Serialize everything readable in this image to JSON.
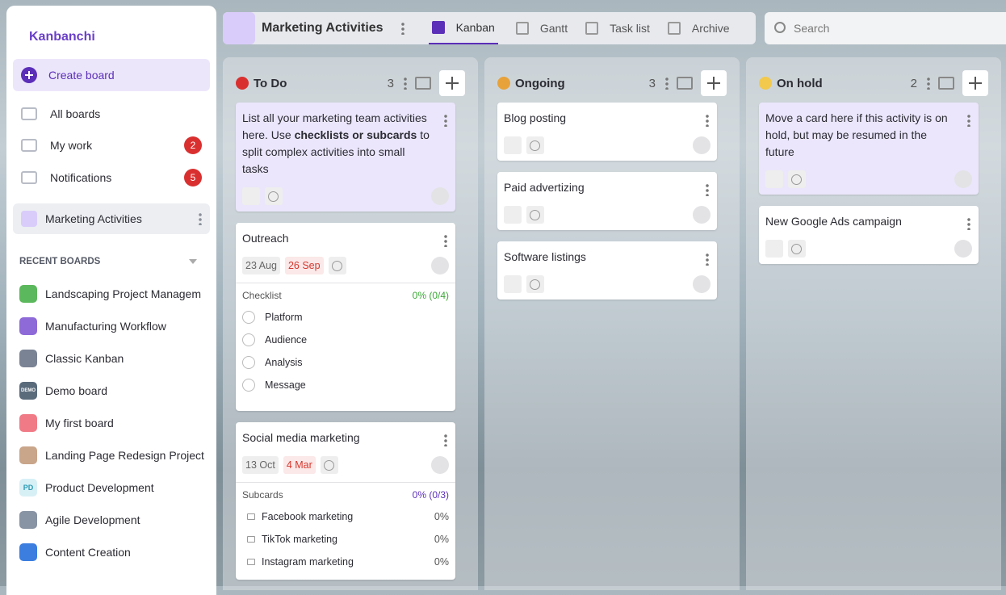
{
  "sidebar": {
    "logo": "Kanbanchi",
    "create": "Create board",
    "nav": [
      {
        "label": "All boards"
      },
      {
        "label": "My work",
        "badge": 2
      },
      {
        "label": "Notifications",
        "badge": 5
      }
    ],
    "current_board": "Marketing Activities",
    "recent_title": "RECENT BOARDS",
    "recent": [
      {
        "label": "Landscaping Project Managem",
        "color": "#5cb85c"
      },
      {
        "label": "Manufacturing Workflow",
        "color": "#8e6ad8"
      },
      {
        "label": "Classic Kanban",
        "color": "#7a8394"
      },
      {
        "label": "Demo board",
        "color": "#5a6b7c",
        "icon_text": "DEMO"
      },
      {
        "label": "My first board",
        "color": "#f07b86"
      },
      {
        "label": "Landing Page Redesign Project",
        "color": "#c9a58a"
      },
      {
        "label": "Product Development",
        "color": "#d7f0f6",
        "icon_text": "PD"
      },
      {
        "label": "Agile Development",
        "color": "#8893a3"
      },
      {
        "label": "Content Creation",
        "color": "#3b7ee0"
      }
    ]
  },
  "topbar": {
    "board": "Marketing Activities",
    "tabs": [
      "Kanban",
      "Gantt",
      "Task list",
      "Archive"
    ],
    "search": "Search"
  },
  "lists": [
    {
      "title": "To Do",
      "count": 3,
      "cards": [
        {
          "text_parts": [
            "List all your marketing team activities here. Use ",
            "checklists or subcards",
            " to split complex activities into small tasks"
          ]
        },
        {
          "title": "Outreach",
          "start": "23 Aug",
          "due": "26 Sep",
          "checklist": {
            "title": "Checklist",
            "progress": "0% (0/4)",
            "items": [
              "Platform",
              "Audience",
              "Analysis",
              "Message"
            ]
          }
        },
        {
          "title": "Social media marketing",
          "start": "13 Oct",
          "due": "4 Mar",
          "subcards": {
            "title": "Subcards",
            "progress": "0% (0/3)",
            "items": [
              {
                "name": "Facebook marketing",
                "progress": "0%"
              },
              {
                "name": "TikTok marketing",
                "progress": "0%"
              },
              {
                "name": "Instagram marketing",
                "progress": "0%"
              }
            ]
          }
        }
      ]
    },
    {
      "title": "Ongoing",
      "count": 3,
      "cards": [
        {
          "title": "Blog posting"
        },
        {
          "title": "Paid advertizing"
        },
        {
          "title": "Software listings"
        }
      ]
    },
    {
      "title": "On hold",
      "count": 2,
      "cards": [
        {
          "text_parts": [
            "Move a card here if this activity is on hold, but may be resumed in the future"
          ]
        },
        {
          "title": "New Google Ads campaign"
        }
      ]
    }
  ]
}
